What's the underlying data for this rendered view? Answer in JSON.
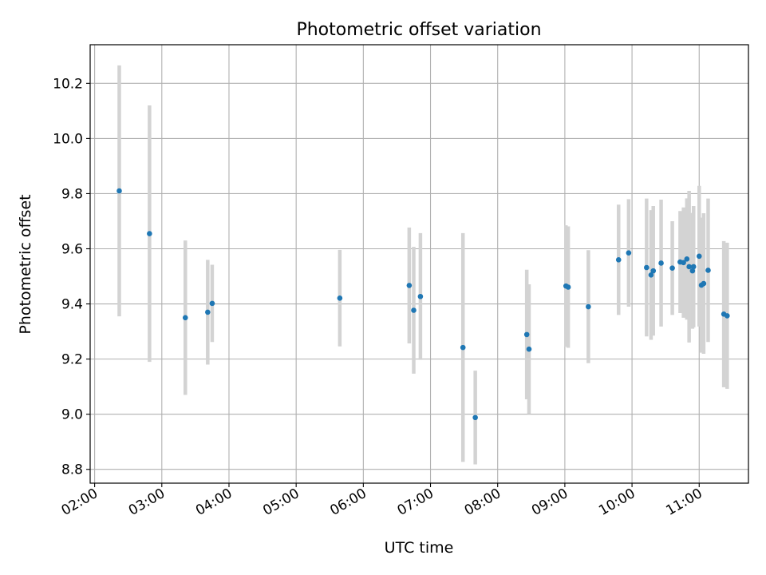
{
  "chart_data": {
    "type": "scatter",
    "title": "Photometric offset variation",
    "xlabel": "UTC time",
    "ylabel": "Photometric offset",
    "x_unit": "UTC time (HH:MM)",
    "xlim": [
      "01:56",
      "11:44"
    ],
    "ylim": [
      8.75,
      10.34
    ],
    "grid": true,
    "x_ticks": [
      "02:00",
      "03:00",
      "04:00",
      "05:00",
      "06:00",
      "07:00",
      "08:00",
      "09:00",
      "10:00",
      "11:00"
    ],
    "y_ticks": [
      "8.8",
      "9.0",
      "9.2",
      "9.4",
      "9.6",
      "9.8",
      "10.0",
      "10.2"
    ],
    "point_color": "#1f77b4",
    "errorbar_color": "#d3d3d3",
    "points": [
      {
        "x": "02:22",
        "y": 9.81,
        "err": 0.455
      },
      {
        "x": "02:49",
        "y": 9.655,
        "err": 0.465
      },
      {
        "x": "03:21",
        "y": 9.35,
        "err": 0.28
      },
      {
        "x": "03:41",
        "y": 9.37,
        "err": 0.19
      },
      {
        "x": "03:45",
        "y": 9.402,
        "err": 0.14
      },
      {
        "x": "05:39",
        "y": 9.421,
        "err": 0.175
      },
      {
        "x": "06:41",
        "y": 9.467,
        "err": 0.21
      },
      {
        "x": "06:45",
        "y": 9.377,
        "err": 0.23
      },
      {
        "x": "06:51",
        "y": 9.427,
        "err": 0.23
      },
      {
        "x": "07:29",
        "y": 9.242,
        "err": 0.415
      },
      {
        "x": "07:40",
        "y": 8.988,
        "err": 0.17
      },
      {
        "x": "08:26",
        "y": 9.289,
        "err": 0.235
      },
      {
        "x": "08:28",
        "y": 9.236,
        "err": 0.235
      },
      {
        "x": "09:01",
        "y": 9.465,
        "err": 0.22
      },
      {
        "x": "09:03",
        "y": 9.461,
        "err": 0.22
      },
      {
        "x": "09:21",
        "y": 9.39,
        "err": 0.205
      },
      {
        "x": "09:48",
        "y": 9.56,
        "err": 0.2
      },
      {
        "x": "09:57",
        "y": 9.585,
        "err": 0.195
      },
      {
        "x": "10:13",
        "y": 9.532,
        "err": 0.25
      },
      {
        "x": "10:17",
        "y": 9.505,
        "err": 0.235
      },
      {
        "x": "10:19",
        "y": 9.52,
        "err": 0.235
      },
      {
        "x": "10:26",
        "y": 9.548,
        "err": 0.23
      },
      {
        "x": "10:36",
        "y": 9.53,
        "err": 0.17
      },
      {
        "x": "10:43",
        "y": 9.552,
        "err": 0.185
      },
      {
        "x": "10:46",
        "y": 9.55,
        "err": 0.2
      },
      {
        "x": "10:49",
        "y": 9.563,
        "err": 0.22
      },
      {
        "x": "10:51",
        "y": 9.535,
        "err": 0.275
      },
      {
        "x": "10:54",
        "y": 9.52,
        "err": 0.21
      },
      {
        "x": "10:55",
        "y": 9.535,
        "err": 0.22
      },
      {
        "x": "11:00",
        "y": 9.573,
        "err": 0.255
      },
      {
        "x": "11:02",
        "y": 9.468,
        "err": 0.245
      },
      {
        "x": "11:04",
        "y": 9.474,
        "err": 0.255
      },
      {
        "x": "11:08",
        "y": 9.522,
        "err": 0.26
      },
      {
        "x": "11:22",
        "y": 9.363,
        "err": 0.265
      },
      {
        "x": "11:25",
        "y": 9.357,
        "err": 0.265
      }
    ]
  }
}
